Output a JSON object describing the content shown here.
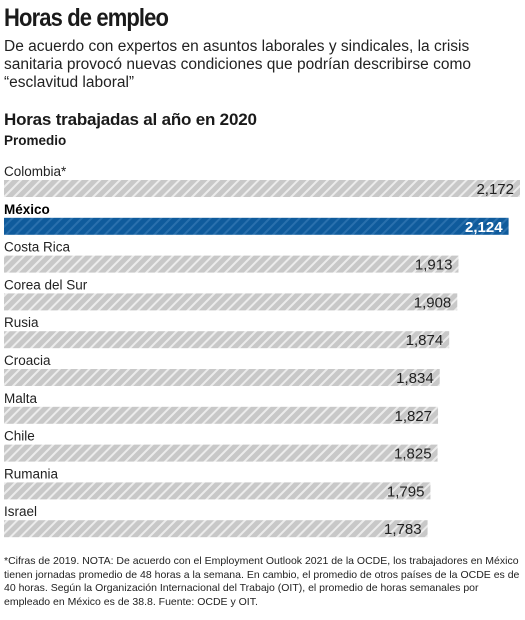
{
  "header": {
    "title": "Horas de empleo",
    "intro": "De acuerdo con expertos en asuntos laborales y sindicales, la crisis sanitaria provocó nuevas condiciones que podrían describirse como “esclavitud laboral”"
  },
  "chart_data": {
    "type": "bar",
    "orientation": "horizontal",
    "title": "Horas trabajadas al año en 2020",
    "subtitle": "Promedio",
    "categories": [
      "Colombia*",
      "México",
      "Costa Rica",
      "Corea del Sur",
      "Rusia",
      "Croacia",
      "Malta",
      "Chile",
      "Rumania",
      "Israel"
    ],
    "values": [
      2172,
      2124,
      1913,
      1908,
      1874,
      1834,
      1827,
      1825,
      1795,
      1783
    ],
    "value_labels": [
      "2,172",
      "2,124",
      "1,913",
      "1,908",
      "1,874",
      "1,834",
      "1,827",
      "1,825",
      "1,795",
      "1,783"
    ],
    "highlight": "México",
    "grid": false,
    "colors": {
      "bar": "#c8c8c8",
      "bar_stripe": "#ffffff",
      "highlight_bar": "#0f5b9c",
      "highlight_stripe": "#5b8fc2"
    }
  },
  "footnote": "*Cifras de 2019. NOTA: De acuerdo con el Employment Outlook 2021 de la OCDE, los trabajadores en México tienen jornadas promedio de 48 horas a la semana. En cambio, el promedio de otros países de la OCDE es de 40 horas. Según la Organización Internacional del Trabajo (OIT), el promedio de horas semanales por empleado en México es de 38.8. Fuente: OCDE y OIT."
}
